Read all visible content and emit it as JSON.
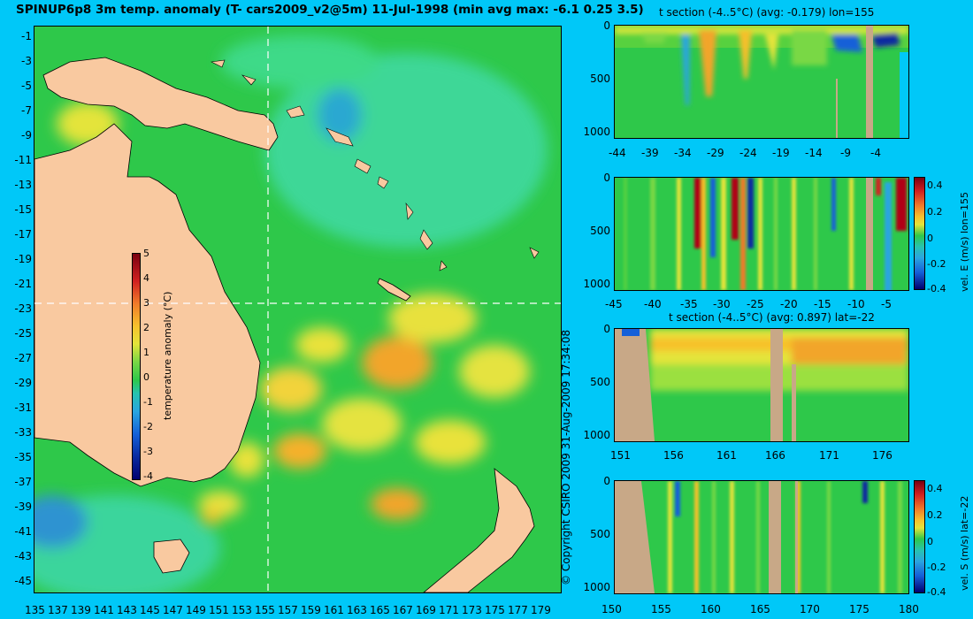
{
  "title": "SPINUP6p8 3m temp. anomaly (T- cars2009_v2@5m) 11-Jul-1998 (min avg max: -6.1 0.25 3.5)",
  "copyright": "© Copyright CSIRO 2009   31-Aug-2009 17:34:08",
  "map": {
    "lat_ticks": [
      "-1",
      "-3",
      "-5",
      "-7",
      "-9",
      "-11",
      "-13",
      "-15",
      "-17",
      "-19",
      "-21",
      "-23",
      "-25",
      "-27",
      "-29",
      "-31",
      "-33",
      "-35",
      "-37",
      "-39",
      "-41",
      "-43",
      "-45"
    ],
    "lon_ticks": [
      "135",
      "137",
      "139",
      "141",
      "143",
      "145",
      "147",
      "149",
      "151",
      "153",
      "155",
      "157",
      "159",
      "161",
      "163",
      "165",
      "167",
      "169",
      "171",
      "173",
      "175",
      "177",
      "179"
    ],
    "colorbar": {
      "label": "temperature anomaly (°C)",
      "ticks": [
        "5",
        "4",
        "3",
        "2",
        "1",
        "0",
        "-1",
        "-2",
        "-3",
        "-4"
      ]
    }
  },
  "panels": {
    "p1": {
      "title": "t section (-4..5°C) (avg: -0.179) lon=155",
      "y_ticks": [
        "0",
        "500",
        "1000"
      ],
      "x_ticks": [
        "-44",
        "-39",
        "-34",
        "-29",
        "-24",
        "-19",
        "-14",
        "-9",
        "-4"
      ]
    },
    "p2": {
      "y_ticks": [
        "0",
        "500",
        "1000"
      ],
      "x_ticks": [
        "-45",
        "-40",
        "-35",
        "-30",
        "-25",
        "-20",
        "-15",
        "-10",
        "-5"
      ],
      "cbar_label": "vel. E (m/s) lon=155",
      "cbar_ticks": [
        "0.4",
        "0.2",
        "0",
        "-0.2",
        "-0.4"
      ]
    },
    "p3": {
      "title": "t section (-4..5°C) (avg: 0.897) lat=-22",
      "y_ticks": [
        "0",
        "500",
        "1000"
      ],
      "x_ticks": [
        "151",
        "156",
        "161",
        "166",
        "171",
        "176"
      ]
    },
    "p4": {
      "y_ticks": [
        "0",
        "500",
        "1000"
      ],
      "x_ticks": [
        "150",
        "155",
        "160",
        "165",
        "170",
        "175",
        "180"
      ],
      "cbar_label": "vel. S (m/s) lat=-22",
      "cbar_ticks": [
        "0.4",
        "0.2",
        "0",
        "-0.2",
        "-0.4"
      ]
    }
  },
  "colors": {
    "background": "#00c8f8",
    "land": "#f9c9a0",
    "section_land": "#c8a887",
    "ocean_base": "#2ec84a"
  }
}
